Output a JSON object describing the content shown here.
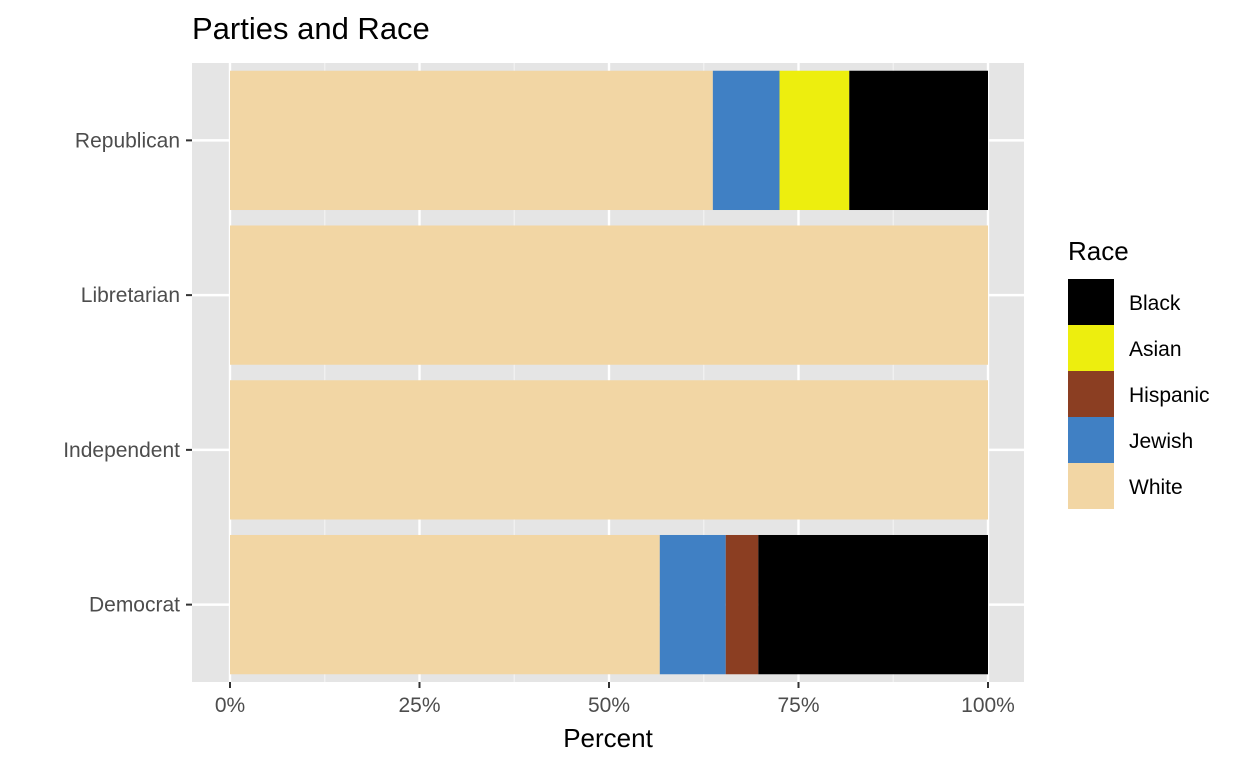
{
  "chart_data": {
    "type": "bar",
    "orientation": "horizontal",
    "stacked": true,
    "title": "Parties and Race",
    "xlabel": "Percent",
    "ylabel": "",
    "xlim": [
      0,
      1
    ],
    "x_ticks": [
      {
        "value": 0,
        "label": "0%"
      },
      {
        "value": 0.25,
        "label": "25%"
      },
      {
        "value": 0.5,
        "label": "50%"
      },
      {
        "value": 0.75,
        "label": "75%"
      },
      {
        "value": 1,
        "label": "100%"
      }
    ],
    "categories": [
      "Republican",
      "Libretarian",
      "Independent",
      "Democrat"
    ],
    "series": [
      {
        "name": "White",
        "color": "#F2D6A4",
        "values": [
          0.637,
          1.0,
          1.0,
          0.567
        ]
      },
      {
        "name": "Jewish",
        "color": "#4080C4",
        "values": [
          0.088,
          0.0,
          0.0,
          0.087
        ]
      },
      {
        "name": "Hispanic",
        "color": "#8B3E22",
        "values": [
          0.0,
          0.0,
          0.0,
          0.043
        ]
      },
      {
        "name": "Asian",
        "color": "#EDEE0E",
        "values": [
          0.092,
          0.0,
          0.0,
          0.0
        ]
      },
      {
        "name": "Black",
        "color": "#000000",
        "values": [
          0.183,
          0.0,
          0.0,
          0.303
        ]
      }
    ],
    "legend": {
      "title": "Race",
      "position": "right",
      "order": [
        "Black",
        "Asian",
        "Hispanic",
        "Jewish",
        "White"
      ]
    },
    "grid": true,
    "panel_background": "#E5E5E5"
  }
}
